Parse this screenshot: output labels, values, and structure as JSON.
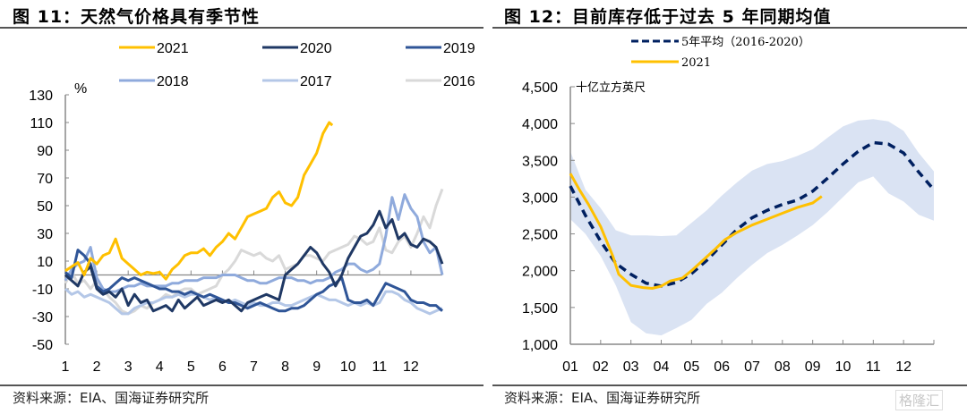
{
  "figures": [
    {
      "title": "图 11：天然气价格具有季节性",
      "source": "资料来源：EIA、国海证券研究所"
    },
    {
      "title": "图 12：目前库存低于过去 5 年同期均值",
      "source": "资料来源：EIA、国海证券研究所"
    }
  ],
  "watermark": "格隆汇",
  "chart_data": [
    {
      "type": "line",
      "title": "天然气价格具有季节性",
      "ylabel": "%",
      "xlabel": "",
      "ylim": [
        -50,
        130
      ],
      "yticks": [
        "130",
        "110",
        "90",
        "70",
        "50",
        "30",
        "10",
        "-10",
        "-30",
        "-50"
      ],
      "ytick_values": [
        130,
        110,
        90,
        70,
        50,
        30,
        10,
        -10,
        -30,
        -50
      ],
      "xticks": [
        "1",
        "2",
        "3",
        "4",
        "5",
        "6",
        "7",
        "8",
        "9",
        "10",
        "11",
        "12"
      ],
      "xlim": [
        1,
        13
      ],
      "legend": "top",
      "grid": false,
      "series": [
        {
          "name": "2021",
          "color": "#FFC000",
          "x": [
            1,
            1.2,
            1.4,
            1.6,
            1.8,
            2,
            2.2,
            2.4,
            2.6,
            2.8,
            3,
            3.2,
            3.4,
            3.6,
            3.8,
            4,
            4.2,
            4.4,
            4.6,
            4.8,
            5,
            5.2,
            5.4,
            5.6,
            5.8,
            6,
            6.2,
            6.4,
            6.6,
            6.8,
            7,
            7.2,
            7.4,
            7.6,
            7.8,
            8,
            8.2,
            8.4,
            8.6,
            8.8,
            9,
            9.2,
            9.4,
            9.5
          ],
          "values": [
            3,
            6,
            9,
            0,
            12,
            8,
            14,
            16,
            26,
            12,
            8,
            4,
            0,
            2,
            1,
            2,
            -3,
            4,
            8,
            14,
            16,
            16,
            19,
            14,
            20,
            24,
            30,
            26,
            34,
            42,
            44,
            46,
            48,
            56,
            60,
            52,
            50,
            56,
            72,
            80,
            88,
            102,
            110,
            108
          ]
        },
        {
          "name": "2020",
          "color": "#1F3864",
          "x": [
            1,
            1.2,
            1.4,
            1.6,
            1.8,
            2,
            2.2,
            2.4,
            2.6,
            2.8,
            3,
            3.2,
            3.4,
            3.6,
            3.8,
            4,
            4.2,
            4.4,
            4.6,
            4.8,
            5,
            5.2,
            5.4,
            5.6,
            5.8,
            6,
            6.2,
            6.4,
            6.6,
            6.8,
            7,
            7.2,
            7.4,
            7.6,
            7.8,
            8,
            8.2,
            8.4,
            8.6,
            8.8,
            9,
            9.2,
            9.4,
            9.6,
            9.8,
            10,
            10.2,
            10.4,
            10.6,
            10.8,
            11,
            11.2,
            11.4,
            11.6,
            11.8,
            12,
            12.2,
            12.4,
            12.6,
            12.8,
            13
          ],
          "values": [
            0,
            -4,
            -8,
            2,
            6,
            -10,
            -14,
            -12,
            -16,
            -10,
            -22,
            -14,
            -20,
            -18,
            -26,
            -24,
            -22,
            -26,
            -18,
            -24,
            -20,
            -16,
            -22,
            -20,
            -18,
            -20,
            -18,
            -22,
            -26,
            -20,
            -18,
            -16,
            -14,
            -16,
            -18,
            0,
            4,
            8,
            14,
            20,
            16,
            8,
            2,
            -8,
            0,
            12,
            20,
            28,
            30,
            36,
            46,
            34,
            40,
            26,
            30,
            22,
            20,
            26,
            24,
            20,
            8
          ]
        },
        {
          "name": "2019",
          "color": "#2F5597",
          "x": [
            1,
            1.2,
            1.4,
            1.6,
            1.8,
            2,
            2.2,
            2.4,
            2.6,
            2.8,
            3,
            3.2,
            3.4,
            3.6,
            3.8,
            4,
            4.2,
            4.4,
            4.6,
            4.8,
            5,
            5.2,
            5.4,
            5.6,
            5.8,
            6,
            6.2,
            6.4,
            6.6,
            6.8,
            7,
            7.2,
            7.4,
            7.6,
            7.8,
            8,
            8.2,
            8.4,
            8.6,
            8.8,
            9,
            9.2,
            9.4,
            9.6,
            9.8,
            10,
            10.2,
            10.4,
            10.6,
            10.8,
            11,
            11.2,
            11.4,
            11.6,
            11.8,
            12,
            12.2,
            12.4,
            12.6,
            12.8,
            13
          ],
          "values": [
            2,
            -2,
            18,
            14,
            8,
            -8,
            -12,
            -10,
            -6,
            -2,
            -4,
            -2,
            -4,
            -6,
            -8,
            -10,
            -10,
            -12,
            -12,
            -14,
            -12,
            -14,
            -16,
            -14,
            -16,
            -18,
            -20,
            -20,
            -22,
            -24,
            -22,
            -20,
            -22,
            -24,
            -26,
            -26,
            -24,
            -24,
            -22,
            -18,
            -14,
            -12,
            -8,
            -6,
            -2,
            -18,
            -20,
            -20,
            -18,
            -22,
            -14,
            -6,
            -8,
            -10,
            -12,
            -18,
            -20,
            -20,
            -22,
            -22,
            -26
          ]
        },
        {
          "name": "2018",
          "color": "#8FAADC",
          "x": [
            1,
            1.2,
            1.4,
            1.6,
            1.8,
            2,
            2.2,
            2.4,
            2.6,
            2.8,
            3,
            3.2,
            3.4,
            3.6,
            3.8,
            4,
            4.2,
            4.4,
            4.6,
            4.8,
            5,
            5.2,
            5.4,
            5.6,
            5.8,
            6,
            6.2,
            6.4,
            6.6,
            6.8,
            7,
            7.2,
            7.4,
            7.6,
            7.8,
            8,
            8.2,
            8.4,
            8.6,
            8.8,
            9,
            9.2,
            9.4,
            9.6,
            9.8,
            10,
            10.2,
            10.4,
            10.6,
            10.8,
            11,
            11.2,
            11.4,
            11.6,
            11.8,
            12,
            12.2,
            12.4,
            12.6,
            12.8,
            13
          ],
          "values": [
            -4,
            4,
            8,
            10,
            20,
            -2,
            -10,
            -12,
            -12,
            -10,
            -8,
            -8,
            -6,
            -8,
            -8,
            -8,
            -8,
            -6,
            -6,
            -4,
            -4,
            -4,
            -2,
            -2,
            -2,
            0,
            0,
            0,
            -2,
            -4,
            -4,
            -6,
            -6,
            -4,
            -2,
            -2,
            -2,
            -4,
            -4,
            -6,
            -4,
            -4,
            -2,
            2,
            4,
            8,
            8,
            4,
            2,
            4,
            8,
            28,
            56,
            40,
            58,
            48,
            42,
            24,
            16,
            20,
            0
          ]
        },
        {
          "name": "2017",
          "color": "#B4C7E7",
          "x": [
            1,
            1.2,
            1.4,
            1.6,
            1.8,
            2,
            2.2,
            2.4,
            2.6,
            2.8,
            3,
            3.2,
            3.4,
            3.6,
            3.8,
            4,
            4.2,
            4.4,
            4.6,
            4.8,
            5,
            5.2,
            5.4,
            5.6,
            5.8,
            6,
            6.2,
            6.4,
            6.6,
            6.8,
            7,
            7.2,
            7.4,
            7.6,
            7.8,
            8,
            8.2,
            8.4,
            8.6,
            8.8,
            9,
            9.2,
            9.4,
            9.6,
            9.8,
            10,
            10.2,
            10.4,
            10.6,
            10.8,
            11,
            11.2,
            11.4,
            11.6,
            11.8,
            12,
            12.2,
            12.4,
            12.6,
            12.8,
            13
          ],
          "values": [
            -10,
            -14,
            -12,
            -16,
            -14,
            -16,
            -18,
            -20,
            -24,
            -28,
            -28,
            -24,
            -22,
            -20,
            -20,
            -18,
            -16,
            -16,
            -14,
            -16,
            -14,
            -14,
            -16,
            -18,
            -16,
            -18,
            -20,
            -18,
            -20,
            -22,
            -20,
            -22,
            -22,
            -20,
            -20,
            -22,
            -22,
            -20,
            -18,
            -16,
            -14,
            -16,
            -18,
            -18,
            -20,
            -22,
            -20,
            -22,
            -20,
            -22,
            -20,
            -12,
            -12,
            -14,
            -18,
            -20,
            -24,
            -26,
            -28,
            -26,
            -24
          ]
        },
        {
          "name": "2016",
          "color": "#D9D9D9",
          "x": [
            1,
            1.2,
            1.4,
            1.6,
            1.8,
            2,
            2.2,
            2.4,
            2.6,
            2.8,
            3,
            3.2,
            3.4,
            3.6,
            3.8,
            4,
            4.2,
            4.4,
            4.6,
            4.8,
            5,
            5.2,
            5.4,
            5.6,
            5.8,
            6,
            6.2,
            6.4,
            6.6,
            6.8,
            7,
            7.2,
            7.4,
            7.6,
            7.8,
            8,
            8.2,
            8.4,
            8.6,
            8.8,
            9,
            9.2,
            9.4,
            9.6,
            9.8,
            10,
            10.2,
            10.4,
            10.6,
            10.8,
            11,
            11.2,
            11.4,
            11.6,
            11.8,
            12,
            12.2,
            12.4,
            12.6,
            12.8,
            13
          ],
          "values": [
            -6,
            2,
            -6,
            -4,
            -10,
            -4,
            -10,
            -16,
            -20,
            -26,
            -28,
            -26,
            -22,
            -24,
            -20,
            -18,
            -14,
            -16,
            -12,
            -10,
            -10,
            -14,
            -12,
            -10,
            -8,
            0,
            4,
            10,
            18,
            16,
            14,
            16,
            12,
            10,
            14,
            4,
            6,
            8,
            14,
            14,
            12,
            10,
            16,
            18,
            20,
            22,
            28,
            26,
            22,
            24,
            34,
            18,
            16,
            24,
            28,
            20,
            30,
            42,
            34,
            50,
            62
          ]
        }
      ]
    },
    {
      "type": "area",
      "title": "目前库存低于过去 5 年同期均值",
      "ylabel": "十亿立方英尺",
      "xlabel": "",
      "ylim": [
        1000,
        4500
      ],
      "yticks": [
        "4,500",
        "4,000",
        "3,500",
        "3,000",
        "2,500",
        "2,000",
        "1,500",
        "1,000"
      ],
      "ytick_values": [
        4500,
        4000,
        3500,
        3000,
        2500,
        2000,
        1500,
        1000
      ],
      "xticks": [
        "01",
        "02",
        "03",
        "04",
        "05",
        "06",
        "07",
        "08",
        "09",
        "10",
        "11",
        "12"
      ],
      "xlim": [
        1,
        13
      ],
      "legend": "top",
      "grid": false,
      "series": [
        {
          "name": "5年平均（2016-2020）",
          "color": "#002060",
          "style": "dashed",
          "x": [
            1,
            1.5,
            2,
            2.5,
            3,
            3.5,
            4,
            4.5,
            5,
            5.5,
            6,
            6.5,
            7,
            7.5,
            8,
            8.5,
            9,
            9.5,
            10,
            10.5,
            11,
            11.5,
            12,
            12.5,
            13
          ],
          "values": [
            3150,
            2750,
            2400,
            2100,
            1950,
            1830,
            1790,
            1840,
            1960,
            2140,
            2350,
            2560,
            2720,
            2820,
            2900,
            2960,
            3080,
            3260,
            3450,
            3620,
            3740,
            3720,
            3600,
            3340,
            3100
          ]
        },
        {
          "name": "2021",
          "color": "#FFC000",
          "style": "solid",
          "x": [
            1,
            1.3,
            1.6,
            2,
            2.4,
            2.6,
            3,
            3.4,
            3.7,
            4,
            4.3,
            4.7,
            5,
            5.4,
            5.8,
            6.1,
            6.5,
            7,
            7.5,
            8,
            8.5,
            9,
            9.3
          ],
          "values": [
            3320,
            3100,
            2900,
            2600,
            2200,
            1950,
            1800,
            1770,
            1760,
            1790,
            1860,
            1900,
            2000,
            2150,
            2300,
            2420,
            2520,
            2620,
            2700,
            2780,
            2860,
            2920,
            3010
          ]
        },
        {
          "name": "5年范围",
          "color": "#DAE3F3",
          "style": "band",
          "x": [
            1,
            1.5,
            2,
            2.5,
            3,
            3.5,
            4,
            4.5,
            5,
            5.5,
            6,
            6.5,
            7,
            7.5,
            8,
            8.5,
            9,
            9.5,
            10,
            10.5,
            11,
            11.5,
            12,
            12.5,
            13
          ],
          "upper": [
            3620,
            3100,
            2850,
            2550,
            2480,
            2480,
            2470,
            2480,
            2650,
            2820,
            3020,
            3200,
            3360,
            3450,
            3490,
            3560,
            3650,
            3810,
            3960,
            4040,
            4060,
            4030,
            3900,
            3600,
            3350
          ],
          "lower": [
            2700,
            2500,
            2200,
            1800,
            1300,
            1150,
            1120,
            1220,
            1330,
            1550,
            1700,
            1900,
            2080,
            2240,
            2350,
            2480,
            2620,
            2800,
            3000,
            3200,
            3280,
            3050,
            2940,
            2760,
            2680
          ]
        }
      ]
    }
  ]
}
